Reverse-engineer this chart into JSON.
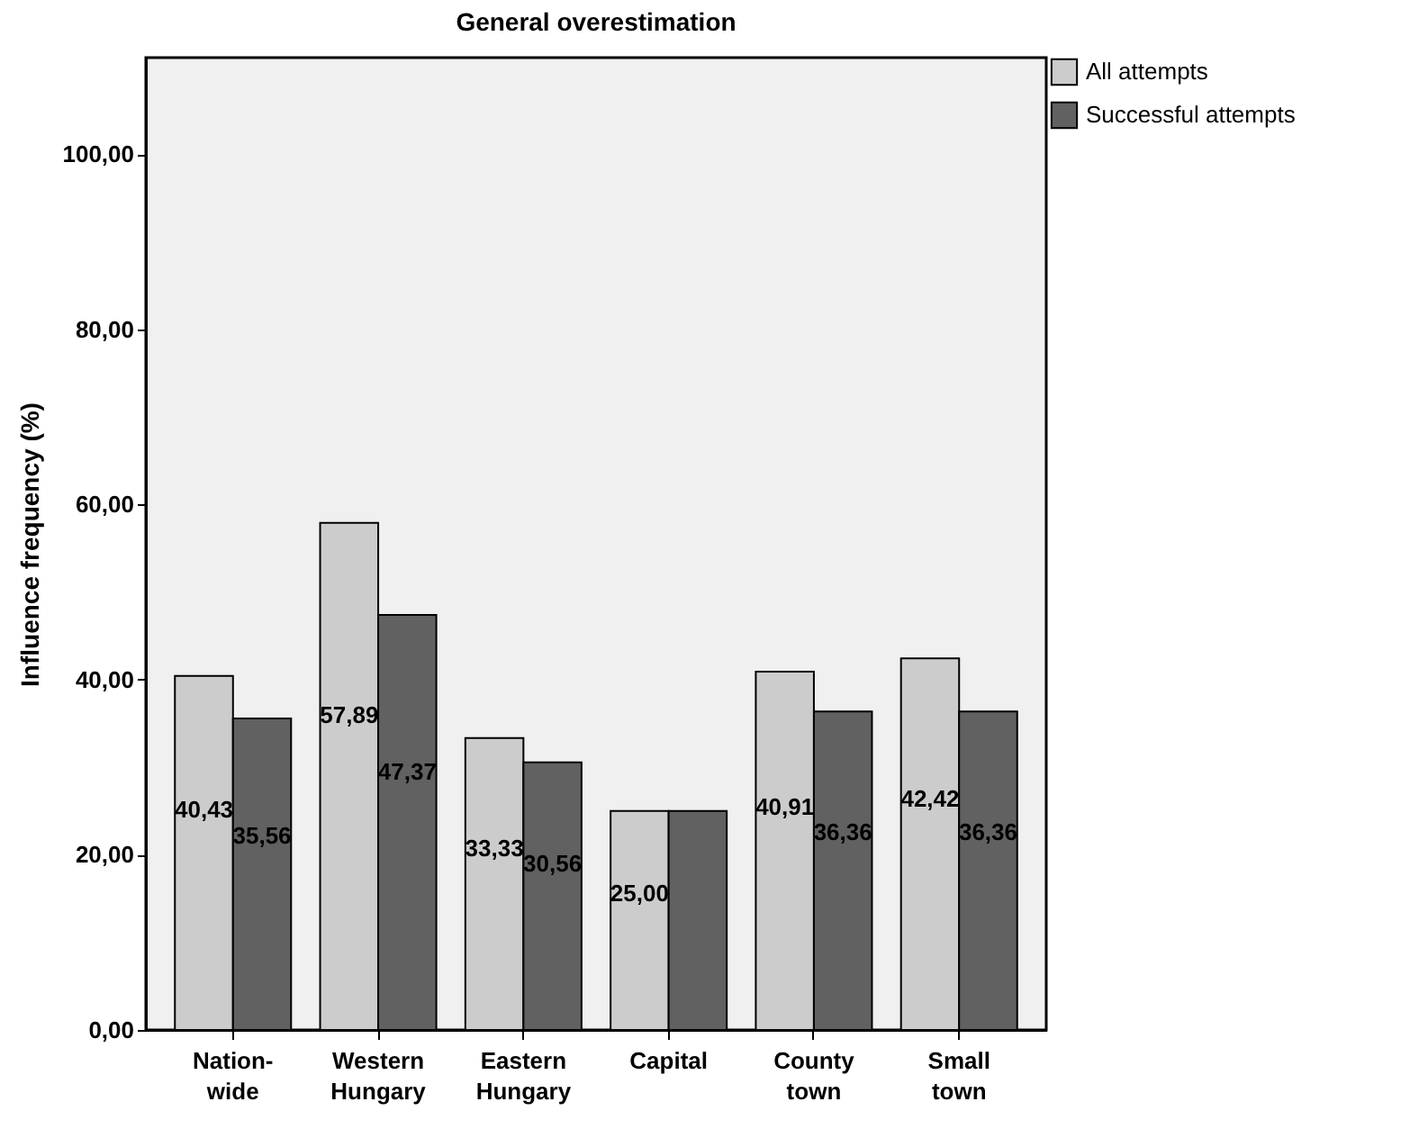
{
  "chart_data": {
    "type": "bar",
    "title": "General overestimation",
    "ylabel": "Influence frequency (%)",
    "categories": [
      "Nation-\nwide",
      "Western\nHungary",
      "Eastern\nHungary",
      "Capital",
      "County\ntown",
      "Small\ntown"
    ],
    "series": [
      {
        "name": "All attempts",
        "color": "#cccccc",
        "values": [
          40.43,
          57.89,
          33.33,
          25.0,
          40.91,
          42.42
        ],
        "value_labels": [
          "40,43",
          "57,89",
          "33,33",
          "25,00",
          "40,91",
          "42,42"
        ]
      },
      {
        "name": "Successful attempts",
        "color": "#616161",
        "values": [
          35.56,
          47.37,
          30.56,
          25.0,
          36.36,
          36.36
        ],
        "value_labels": [
          "35,56",
          "47,37",
          "30,56",
          null,
          "36,36",
          "36,36"
        ]
      }
    ],
    "ylim": [
      0,
      111
    ],
    "yticks": [
      {
        "value": 0,
        "label": "0,00"
      },
      {
        "value": 20,
        "label": "20,00"
      },
      {
        "value": 40,
        "label": "40,00"
      },
      {
        "value": 60,
        "label": "60,00"
      },
      {
        "value": 80,
        "label": "80,00"
      },
      {
        "value": 100,
        "label": "100,00"
      }
    ],
    "grid": false,
    "legend": "top right"
  }
}
